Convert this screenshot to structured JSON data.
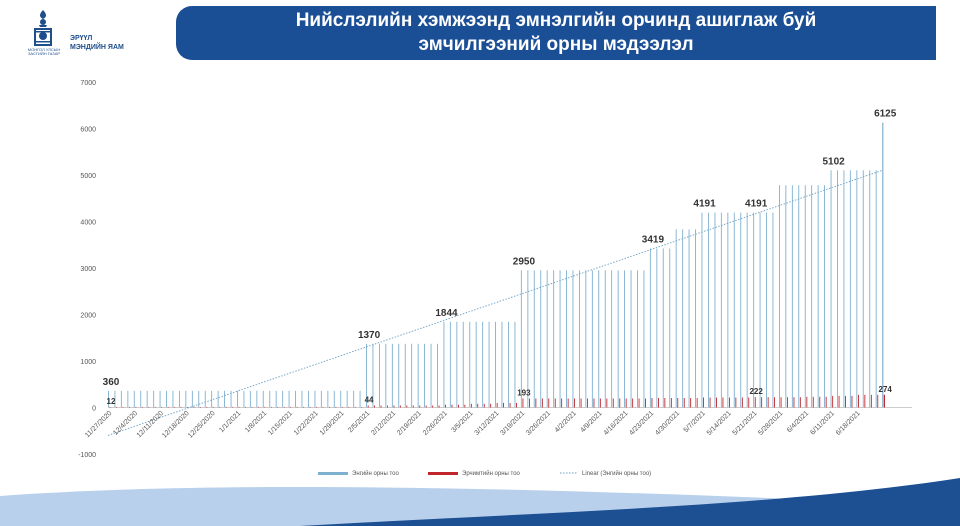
{
  "header": {
    "title_line1": "Нийслэлийн хэмжээнд эмнэлгийн орчинд ашиглаж буй",
    "title_line2": "эмчилгээний орны мэдээлэл",
    "org_name_line1": "ЭРҮҮЛ",
    "org_name_line2": "МЭНДИЙН ЯАМ",
    "org_small_line1": "МОНГОЛ УЛСЫН",
    "org_small_line2": "ЗАСГИЙН ГАЗАР"
  },
  "colors": {
    "title_bar": "#1b4f95",
    "series_general": "#7fb0cf",
    "series_intensive": "#c0262c",
    "trend": "#6aa0c4",
    "footer_wave_dark": "#1d4f93",
    "footer_wave_light": "#b8d0ec"
  },
  "chart_data": {
    "type": "bar",
    "ylim": [
      -1000,
      7000
    ],
    "yticks": [
      -1000,
      0,
      1000,
      2000,
      3000,
      4000,
      5000,
      6000,
      7000
    ],
    "categories": [
      "11/27/2020",
      "12/4/2020",
      "12/11/2020",
      "12/18/2020",
      "12/25/2020",
      "1/1/2021",
      "1/8/2021",
      "1/15/2021",
      "1/22/2021",
      "1/29/2021",
      "2/5/2021",
      "2/12/2021",
      "2/19/2021",
      "2/26/2021",
      "3/5/2021",
      "3/12/2021",
      "3/19/2021",
      "3/26/2021",
      "4/2/2021",
      "4/9/2021",
      "4/16/2021",
      "4/23/2021",
      "4/30/2021",
      "5/7/2021",
      "5/14/2021",
      "5/21/2021",
      "5/28/2021",
      "6/4/2021",
      "6/11/2021",
      "6/18/2021"
    ],
    "series": [
      {
        "name": "Энгийн орны тоо",
        "values": [
          360,
          360,
          360,
          360,
          360,
          360,
          360,
          360,
          360,
          360,
          1370,
          1370,
          1370,
          1844,
          1844,
          1844,
          2950,
          2950,
          2950,
          2950,
          2950,
          3419,
          3830,
          4191,
          4191,
          4191,
          4780,
          4780,
          5102,
          5102
        ]
      },
      {
        "name": "Эрчимтийн орны тоо",
        "values": [
          12,
          12,
          12,
          12,
          12,
          12,
          12,
          12,
          12,
          12,
          44,
          44,
          44,
          60,
          80,
          100,
          193,
          193,
          193,
          193,
          193,
          205,
          205,
          215,
          215,
          222,
          222,
          230,
          250,
          274
        ]
      }
    ],
    "final_point": {
      "date": "6/19/2021",
      "general": 6125,
      "intensive": 274
    },
    "trend": {
      "name": "Linear (Энгийн орны тоо)",
      "start": -600,
      "end": 5100
    },
    "data_labels": [
      {
        "text": "360",
        "index": 0,
        "value": 360,
        "series": "general"
      },
      {
        "text": "12",
        "index": 0,
        "value": 12,
        "series": "intensive"
      },
      {
        "text": "1370",
        "index": 10,
        "value": 1370,
        "series": "general"
      },
      {
        "text": "44",
        "index": 10,
        "value": 44,
        "series": "intensive"
      },
      {
        "text": "1844",
        "index": 13,
        "value": 1844,
        "series": "general"
      },
      {
        "text": "2950",
        "index": 16,
        "value": 2950,
        "series": "general"
      },
      {
        "text": "193",
        "index": 16,
        "value": 193,
        "series": "intensive"
      },
      {
        "text": "3419",
        "index": 21,
        "value": 3419,
        "series": "general"
      },
      {
        "text": "4191",
        "index": 23,
        "value": 4191,
        "series": "general"
      },
      {
        "text": "4191",
        "index": 25,
        "value": 4191,
        "series": "general"
      },
      {
        "text": "222",
        "index": 25,
        "value": 222,
        "series": "intensive"
      },
      {
        "text": "5102",
        "index": 28,
        "value": 5102,
        "series": "general"
      },
      {
        "text": "6125",
        "index": 30,
        "value": 6125,
        "series": "general"
      },
      {
        "text": "274",
        "index": 30,
        "value": 274,
        "series": "intensive"
      }
    ],
    "legend": {
      "position": "bottom",
      "items": [
        "Энгийн орны тоо",
        "Эрчимтийн орны тоо",
        "Linear (Энгийн орны тоо)"
      ]
    },
    "grid": false
  }
}
